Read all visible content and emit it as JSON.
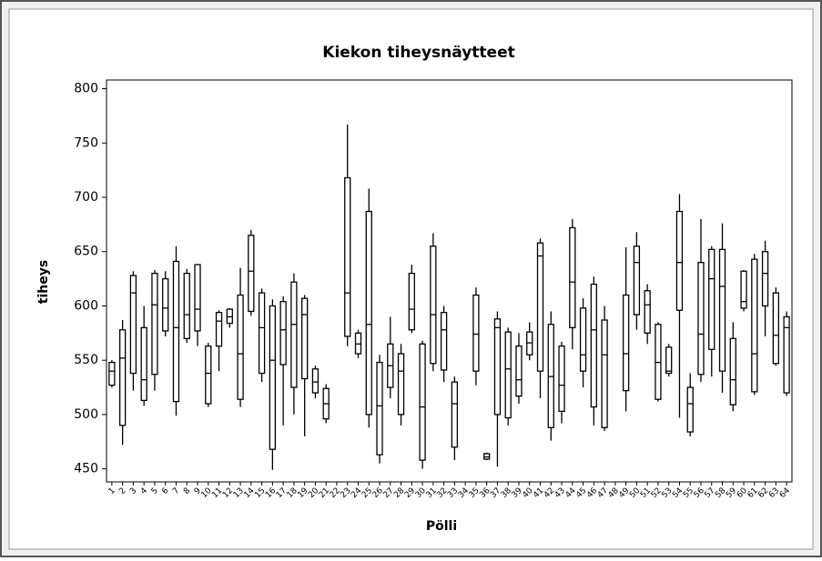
{
  "chart_data": {
    "type": "boxplot",
    "title": "Kiekon tiheysnäytteet",
    "x_label": "Pölli",
    "y_label": "tiheys",
    "categories": [
      "1",
      "2",
      "3",
      "4",
      "5",
      "6",
      "7",
      "8",
      "9",
      "10",
      "11",
      "12",
      "13",
      "14",
      "15",
      "16",
      "17",
      "18",
      "19",
      "20",
      "21",
      "22",
      "23",
      "24",
      "25",
      "26",
      "27",
      "28",
      "29",
      "30",
      "31",
      "32",
      "33",
      "34",
      "35",
      "36",
      "37",
      "38",
      "39",
      "40",
      "41",
      "42",
      "43",
      "44",
      "45",
      "46",
      "47",
      "48",
      "49",
      "50",
      "51",
      "52",
      "53",
      "54",
      "55",
      "56",
      "57",
      "58",
      "59",
      "60",
      "61",
      "62",
      "63",
      "64"
    ],
    "whislo": [
      525,
      472,
      522,
      508,
      522,
      572,
      499,
      566,
      563,
      507,
      540,
      580,
      507,
      591,
      530,
      449,
      490,
      500,
      480,
      515,
      492,
      null,
      563,
      552,
      488,
      455,
      515,
      490,
      575,
      450,
      540,
      530,
      458,
      null,
      527,
      458,
      452,
      490,
      510,
      550,
      515,
      476,
      492,
      560,
      525,
      490,
      485,
      null,
      503,
      578,
      565,
      512,
      535,
      497,
      480,
      530,
      535,
      520,
      503,
      595,
      518,
      572,
      545,
      517
    ],
    "q1": [
      527,
      490,
      538,
      513,
      537,
      577,
      512,
      570,
      577,
      510,
      563,
      584,
      514,
      595,
      538,
      468,
      546,
      525,
      533,
      520,
      496,
      null,
      572,
      556,
      500,
      463,
      525,
      500,
      578,
      458,
      547,
      541,
      470,
      null,
      540,
      459,
      500,
      497,
      517,
      555,
      540,
      488,
      503,
      580,
      540,
      507,
      488,
      null,
      522,
      592,
      575,
      514,
      538,
      596,
      484,
      537,
      560,
      540,
      509,
      598,
      521,
      600,
      547,
      520
    ],
    "med": [
      540,
      552,
      612,
      532,
      601,
      598,
      580,
      592,
      597,
      538,
      586,
      590,
      556,
      632,
      580,
      550,
      578,
      583,
      592,
      530,
      510,
      null,
      612,
      565,
      583,
      508,
      545,
      540,
      597,
      507,
      592,
      578,
      510,
      null,
      574,
      461,
      580,
      542,
      532,
      566,
      646,
      535,
      527,
      622,
      555,
      578,
      555,
      null,
      556,
      640,
      601,
      548,
      540,
      640,
      510,
      574,
      625,
      618,
      532,
      604,
      556,
      630,
      573,
      580
    ],
    "q3": [
      548,
      578,
      628,
      580,
      630,
      625,
      641,
      630,
      638,
      563,
      594,
      597,
      610,
      665,
      612,
      600,
      604,
      622,
      607,
      542,
      524,
      null,
      718,
      575,
      687,
      548,
      565,
      556,
      630,
      565,
      655,
      594,
      530,
      null,
      610,
      464,
      588,
      576,
      563,
      576,
      658,
      583,
      563,
      672,
      598,
      620,
      587,
      null,
      610,
      655,
      614,
      583,
      562,
      687,
      525,
      640,
      652,
      652,
      570,
      632,
      643,
      650,
      612,
      590
    ],
    "whishi": [
      550,
      587,
      632,
      600,
      633,
      632,
      655,
      634,
      638,
      566,
      596,
      598,
      635,
      670,
      616,
      606,
      609,
      630,
      610,
      545,
      528,
      null,
      767,
      578,
      708,
      555,
      590,
      565,
      638,
      568,
      667,
      600,
      535,
      null,
      617,
      465,
      595,
      580,
      575,
      585,
      662,
      595,
      567,
      680,
      607,
      627,
      600,
      null,
      654,
      668,
      620,
      585,
      565,
      703,
      538,
      680,
      655,
      676,
      585,
      633,
      648,
      660,
      617,
      595
    ],
    "color": "#ffffff",
    "ylim": [
      438,
      808
    ],
    "yticks": [
      450,
      500,
      550,
      600,
      650,
      700,
      750,
      800
    ]
  }
}
